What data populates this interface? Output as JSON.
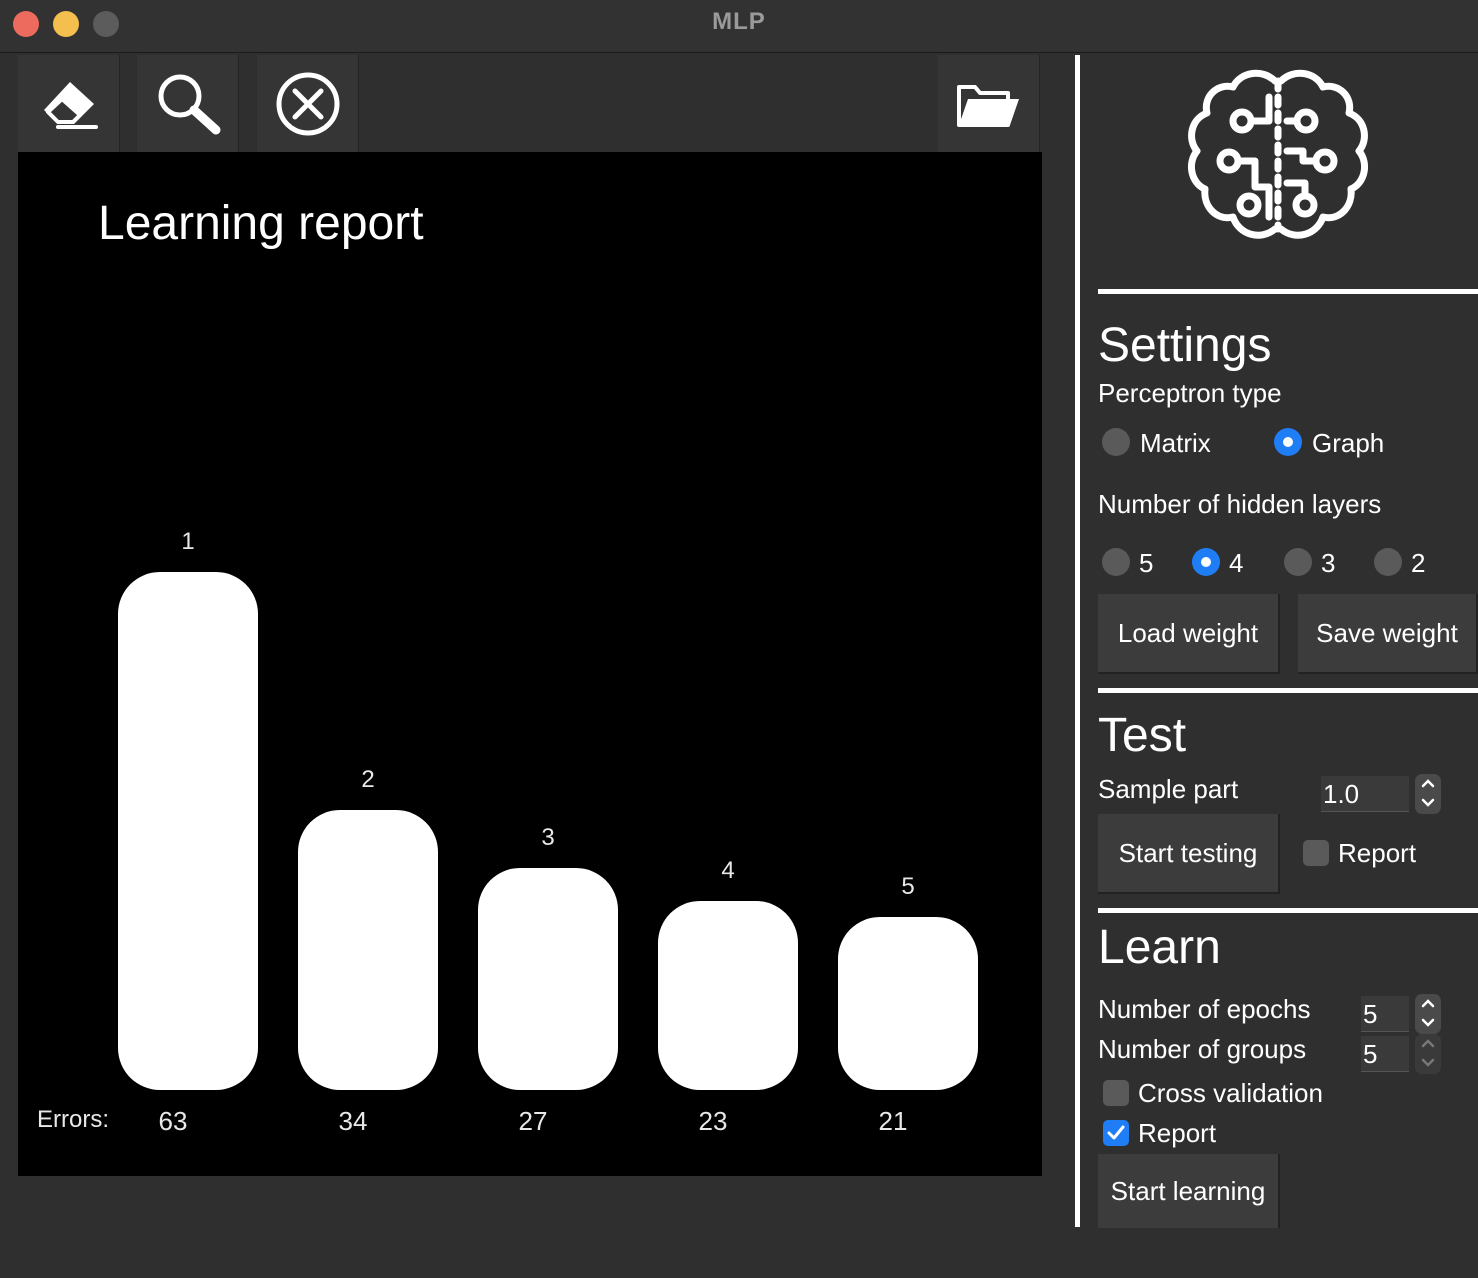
{
  "window": {
    "title": "MLP"
  },
  "toolbar": {
    "items": [
      {
        "name": "eraser-icon"
      },
      {
        "name": "search-icon"
      },
      {
        "name": "close-circle-icon"
      },
      {
        "name": "folder-open-icon"
      }
    ]
  },
  "chart_data": {
    "type": "bar",
    "title": "Learning report",
    "categories": [
      "1",
      "2",
      "3",
      "4",
      "5"
    ],
    "values": [
      63,
      34,
      27,
      23,
      21
    ],
    "value_label": "Errors:",
    "ylim": [
      0,
      63
    ],
    "grid": false
  },
  "settings": {
    "heading": "Settings",
    "perceptron_type_label": "Perceptron type",
    "perceptron_options": [
      {
        "label": "Matrix",
        "selected": false
      },
      {
        "label": "Graph",
        "selected": true
      }
    ],
    "hidden_layers_label": "Number of hidden layers",
    "hidden_layer_options": [
      {
        "label": "5",
        "selected": false
      },
      {
        "label": "4",
        "selected": true
      },
      {
        "label": "3",
        "selected": false
      },
      {
        "label": "2",
        "selected": false
      }
    ],
    "load_weight_label": "Load weight",
    "save_weight_label": "Save weight"
  },
  "test": {
    "heading": "Test",
    "sample_part_label": "Sample part",
    "sample_part_value": "1.0",
    "start_testing_label": "Start testing",
    "report_label": "Report",
    "report_checked": false
  },
  "learn": {
    "heading": "Learn",
    "epochs_label": "Number of epochs",
    "epochs_value": "5",
    "groups_label": "Number of groups",
    "groups_value": "5",
    "cross_validation_label": "Cross validation",
    "cross_validation_checked": false,
    "report_label": "Report",
    "report_checked": true,
    "start_learning_label": "Start learning"
  },
  "colors": {
    "accent": "#1f7df6",
    "background": "#2f2f2f",
    "canvas": "#000000"
  }
}
